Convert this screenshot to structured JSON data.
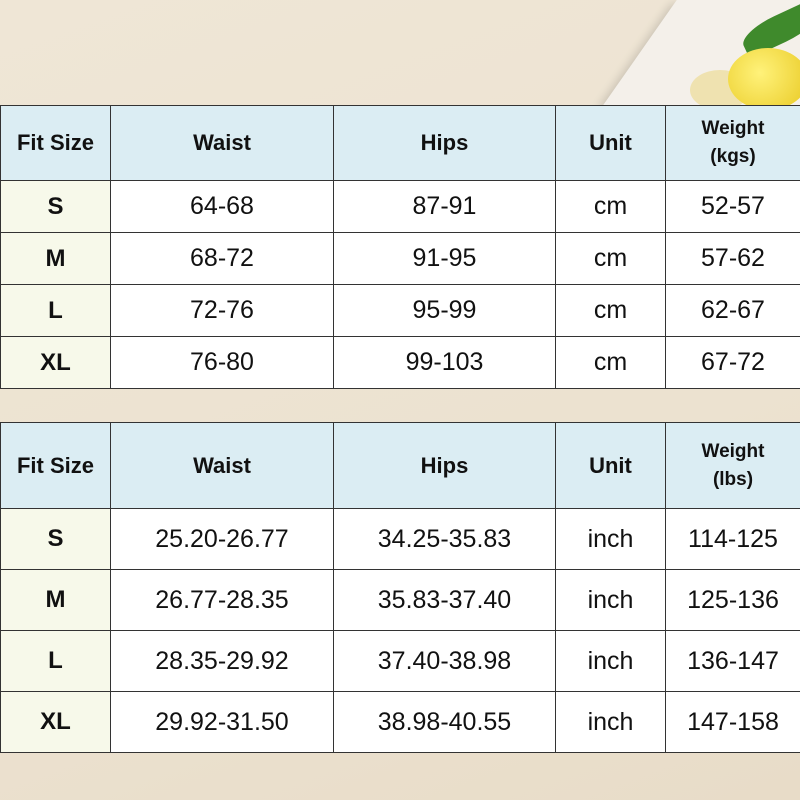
{
  "tables": [
    {
      "headers": {
        "size": "Fit Size",
        "waist": "Waist",
        "hips": "Hips",
        "unit": "Unit",
        "weight": "Weight",
        "weight_unit": "(kgs)"
      },
      "rows": [
        {
          "size": "S",
          "waist": "64-68",
          "hips": "87-91",
          "unit": "cm",
          "weight": "52-57"
        },
        {
          "size": "M",
          "waist": "68-72",
          "hips": "91-95",
          "unit": "cm",
          "weight": "57-62"
        },
        {
          "size": "L",
          "waist": "72-76",
          "hips": "95-99",
          "unit": "cm",
          "weight": "62-67"
        },
        {
          "size": "XL",
          "waist": "76-80",
          "hips": "99-103",
          "unit": "cm",
          "weight": "67-72"
        }
      ]
    },
    {
      "headers": {
        "size": "Fit Size",
        "waist": "Waist",
        "hips": "Hips",
        "unit": "Unit",
        "weight": "Weight",
        "weight_unit": "(lbs)"
      },
      "rows": [
        {
          "size": "S",
          "waist": "25.20-26.77",
          "hips": "34.25-35.83",
          "unit": "inch",
          "weight": "114-125"
        },
        {
          "size": "M",
          "waist": "26.77-28.35",
          "hips": "35.83-37.40",
          "unit": "inch",
          "weight": "125-136"
        },
        {
          "size": "L",
          "waist": "28.35-29.92",
          "hips": "37.40-38.98",
          "unit": "inch",
          "weight": "136-147"
        },
        {
          "size": "XL",
          "waist": "29.92-31.50",
          "hips": "38.98-40.55",
          "unit": "inch",
          "weight": "147-158"
        }
      ]
    }
  ],
  "colors": {
    "header_bg": "#dbedf3",
    "size_col_bg": "#f7f9ea",
    "background": "#ece3d3"
  }
}
